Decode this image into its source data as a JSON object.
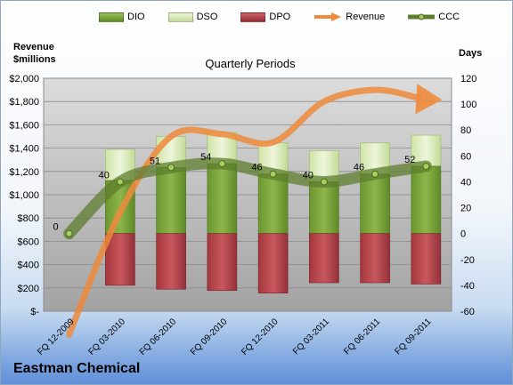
{
  "company": "Eastman Chemical",
  "chart_data": {
    "type": "bar",
    "subtitle": "Quarterly Periods",
    "y_left_label": [
      "Revenue",
      "$millions"
    ],
    "y_right_label": "Days",
    "ylim_left": [
      0,
      2000
    ],
    "ylim_right": [
      -60,
      120
    ],
    "left_tick_labels": [
      "$-",
      "$200",
      "$400",
      "$600",
      "$800",
      "$1,000",
      "$1,200",
      "$1,400",
      "$1,600",
      "$1,800",
      "$2,000"
    ],
    "left_tick_values": [
      0,
      200,
      400,
      600,
      800,
      1000,
      1200,
      1400,
      1600,
      1800,
      2000
    ],
    "right_ticks": [
      -60,
      -40,
      -20,
      0,
      20,
      40,
      60,
      80,
      100,
      120
    ],
    "categories": [
      "FQ 12-2009",
      "FQ 03-2010",
      "FQ 06-2010",
      "FQ 09-2010",
      "FQ 12-2010",
      "FQ 03-2011",
      "FQ 06-2011",
      "FQ 09-2011"
    ],
    "series": [
      {
        "name": "DIO",
        "kind": "stacked-bar",
        "color": "#77a33c",
        "values": [
          null,
          41,
          51,
          54,
          46,
          40,
          46,
          52
        ]
      },
      {
        "name": "DSO",
        "kind": "stacked-bar",
        "color": "#d7e9b4",
        "values": [
          null,
          24,
          24,
          24,
          24,
          24,
          24,
          24
        ]
      },
      {
        "name": "DPO",
        "kind": "negative-bar",
        "color": "#b8444a",
        "values": [
          null,
          -40,
          -43,
          -44,
          -46,
          -38,
          -38,
          -39
        ]
      },
      {
        "name": "Revenue",
        "kind": "arrow-line",
        "color": "#ef8a3c",
        "values": [
          -200,
          850,
          1500,
          1520,
          1450,
          1800,
          1900,
          1830
        ]
      },
      {
        "name": "CCC",
        "kind": "line",
        "color": "#5d7d2d",
        "values": [
          0,
          40,
          51,
          54,
          46,
          40,
          46,
          52
        ]
      }
    ],
    "ccc_labels": [
      "0",
      "40",
      "51",
      "54",
      "46",
      "40",
      "46",
      "52"
    ],
    "grid": true,
    "legend_position": "top"
  }
}
